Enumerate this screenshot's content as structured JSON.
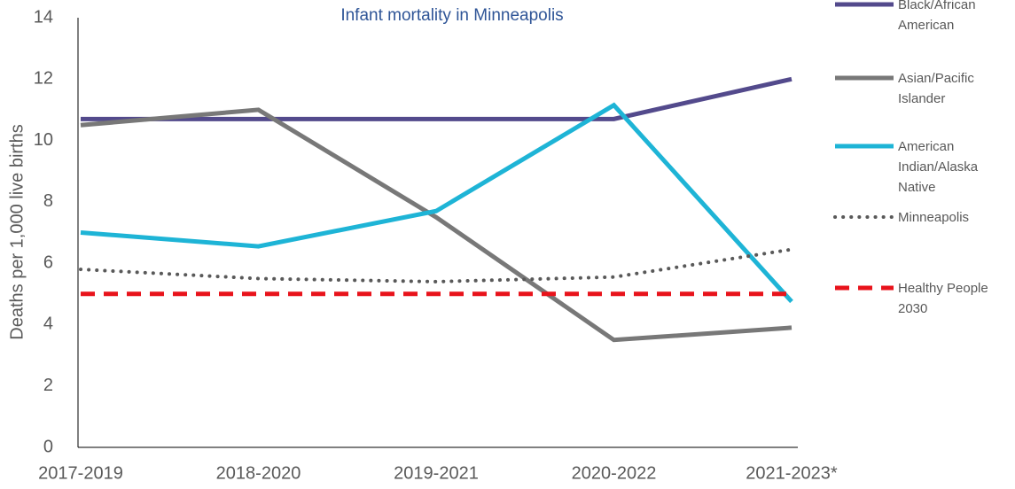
{
  "chart_data": {
    "type": "line",
    "title": "Infant mortality in Minneapolis",
    "y_label": "Deaths per 1,000 live births",
    "categories": [
      "2017-2019",
      "2018-2020",
      "2019-2021",
      "2020-2022",
      "2021-2023*"
    ],
    "ylim": [
      0,
      14
    ],
    "yticks": [
      0,
      2,
      4,
      6,
      8,
      10,
      12,
      14
    ],
    "series": [
      {
        "name": "Black/African American",
        "color": "#534a8c",
        "style": "solid",
        "values": [
          10.7,
          10.7,
          10.7,
          10.7,
          12.0
        ]
      },
      {
        "name": "Asian/Pacific Islander",
        "color": "#787878",
        "style": "solid",
        "values": [
          10.5,
          11.0,
          7.5,
          3.5,
          3.9
        ]
      },
      {
        "name": "American Indian/Alaska Native",
        "color": "#1eb4d6",
        "style": "solid",
        "values": [
          7.0,
          6.55,
          7.7,
          11.15,
          4.75
        ]
      },
      {
        "name": "Minneapolis",
        "color": "#595959",
        "style": "dotted",
        "values": [
          5.8,
          5.5,
          5.4,
          5.55,
          6.45
        ]
      },
      {
        "name": "Healthy People 2030",
        "color": "#e8131b",
        "style": "dashed",
        "values": [
          5,
          5,
          5,
          5,
          5
        ]
      }
    ]
  }
}
